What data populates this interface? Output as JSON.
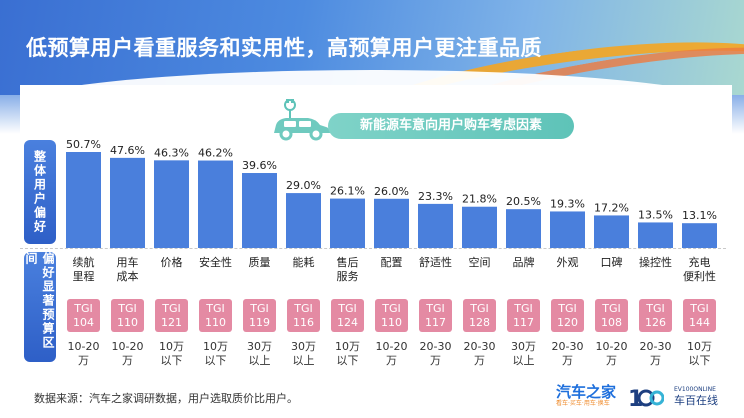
{
  "title": "低预算用户看重服务和实用性，高预算用户更注重品质",
  "subtitle": "新能源车意向用户购车考虑因素",
  "side_labels": {
    "top": "整体用户偏好",
    "bottom": "偏好显著预算区间"
  },
  "source": "数据来源：汽车之家调研数据，用户选取质价比用户。",
  "logos": {
    "autohome_name": "汽车之家",
    "autohome_slogan": "看车·买车·用车·换车",
    "ev100_en": "EV100ONLINE",
    "ev100_zh": "车百在线"
  },
  "colors": {
    "bar": "#4a7fdc",
    "bar_dark": "#2f5fbf",
    "tgi": "#e48aa3",
    "header": "#5ec3b8"
  },
  "chart_data": {
    "type": "bar",
    "categories": [
      "续航里程",
      "用车成本",
      "价格",
      "安全性",
      "质量",
      "能耗",
      "售后服务",
      "配置",
      "舒适性",
      "空间",
      "品牌",
      "外观",
      "口碑",
      "操控性",
      "充电便利性"
    ],
    "category_labels": [
      [
        "续航",
        "里程"
      ],
      [
        "用车",
        "成本"
      ],
      [
        "价格"
      ],
      [
        "安全性"
      ],
      [
        "质量"
      ],
      [
        "能耗"
      ],
      [
        "售后",
        "服务"
      ],
      [
        "配置"
      ],
      [
        "舒适性"
      ],
      [
        "空间"
      ],
      [
        "品牌"
      ],
      [
        "外观"
      ],
      [
        "口碑"
      ],
      [
        "操控性"
      ],
      [
        "充电",
        "便利性"
      ]
    ],
    "values": [
      50.7,
      47.6,
      46.3,
      46.2,
      39.6,
      29.0,
      26.1,
      26.0,
      23.3,
      21.8,
      20.5,
      19.3,
      17.2,
      13.5,
      13.1
    ],
    "value_labels": [
      "50.7%",
      "47.6%",
      "46.3%",
      "46.2%",
      "39.6%",
      "29.0%",
      "26.1%",
      "26.0%",
      "23.3%",
      "21.8%",
      "20.5%",
      "19.3%",
      "17.2%",
      "13.5%",
      "13.1%"
    ],
    "tgi_label": "TGI",
    "tgi": [
      "104",
      "110",
      "121",
      "110",
      "119",
      "116",
      "124",
      "110",
      "117",
      "128",
      "117",
      "120",
      "108",
      "126",
      "144"
    ],
    "budget": [
      [
        "10-20",
        "万"
      ],
      [
        "10-20",
        "万"
      ],
      [
        "10万",
        "以下"
      ],
      [
        "10万",
        "以下"
      ],
      [
        "30万",
        "以上"
      ],
      [
        "30万",
        "以上"
      ],
      [
        "10万",
        "以下"
      ],
      [
        "10-20",
        "万"
      ],
      [
        "20-30",
        "万"
      ],
      [
        "20-30",
        "万"
      ],
      [
        "30万",
        "以上"
      ],
      [
        "20-30",
        "万"
      ],
      [
        "10-20",
        "万"
      ],
      [
        "20-30",
        "万"
      ],
      [
        "10万",
        "以下"
      ]
    ]
  }
}
